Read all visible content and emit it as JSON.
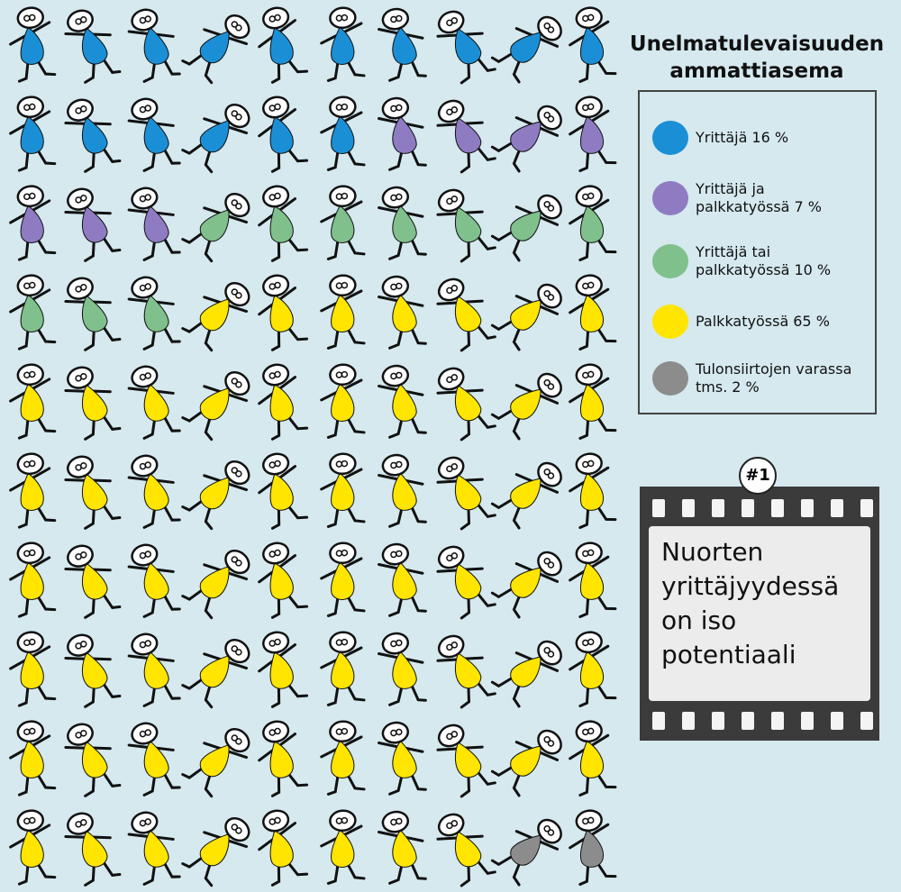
{
  "chart_data": {
    "type": "pictogram",
    "title": "Unelmatulevaisuuden ammattiasema",
    "categories": [
      "Yrittäjä",
      "Yrittäjä ja palkkatyössä",
      "Yrittäjä tai palkkatyössä",
      "Palkkatyössä",
      "Tulonsiirtojen varassa tms."
    ],
    "values": [
      16,
      7,
      10,
      65,
      2
    ],
    "value_labels": [
      "16 %",
      "7 %",
      "10 %",
      "65 %",
      "2 %"
    ],
    "colors": [
      "#1b8fd6",
      "#8f7bc2",
      "#80c08c",
      "#ffe500",
      "#8c8c8c"
    ],
    "badge": "#1",
    "note": "Nuorten yrittäjyydessä on iso potentiaali"
  }
}
